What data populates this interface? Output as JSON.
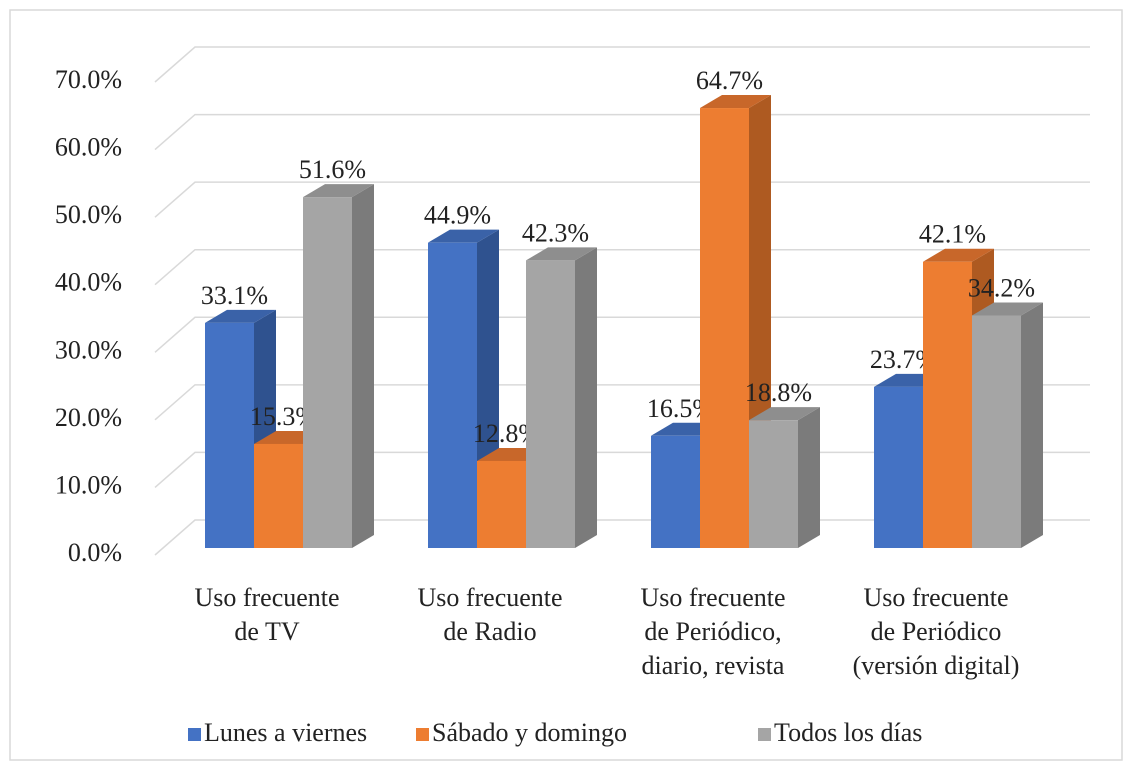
{
  "chart_data": {
    "type": "bar3d",
    "categories": [
      [
        "Uso frecuente",
        "de TV"
      ],
      [
        "Uso frecuente",
        "de Radio"
      ],
      [
        "Uso frecuente",
        "de Periódico,",
        "diario, revista"
      ],
      [
        "Uso frecuente",
        "de Periódico",
        "(versión digital)"
      ]
    ],
    "series": [
      {
        "name": "Lunes a viernes",
        "color": "#4472c4",
        "side": "#2f528f",
        "top": "#3a62a8",
        "values": [
          33.1,
          44.9,
          16.5,
          23.7
        ],
        "value_labels": [
          "33.1%",
          "44.9%",
          "16.5%",
          "23.7%"
        ]
      },
      {
        "name": "Sábado y domingo",
        "color": "#ed7d31",
        "side": "#ae5a21",
        "top": "#c8672a",
        "values": [
          15.3,
          12.8,
          64.7,
          42.1
        ],
        "value_labels": [
          "15.3%",
          "12.8%",
          "64.7%",
          "42.1%"
        ]
      },
      {
        "name": "Todos los días",
        "color": "#a5a5a5",
        "side": "#7b7b7b",
        "top": "#8e8e8e",
        "values": [
          51.6,
          42.3,
          18.8,
          34.2
        ],
        "value_labels": [
          "51.6%",
          "42.3%",
          "18.8%",
          "34.2%"
        ]
      }
    ],
    "ylim": [
      0,
      70
    ],
    "yticks": [
      {
        "value": 0,
        "label": "0.0%"
      },
      {
        "value": 10,
        "label": "10.0%"
      },
      {
        "value": 20,
        "label": "20.0%"
      },
      {
        "value": 30,
        "label": "30.0%"
      },
      {
        "value": 40,
        "label": "40.0%"
      },
      {
        "value": 50,
        "label": "50.0%"
      },
      {
        "value": 60,
        "label": "60.0%"
      },
      {
        "value": 70,
        "label": "70.0%"
      }
    ],
    "grid": true,
    "legend": "bottom"
  }
}
